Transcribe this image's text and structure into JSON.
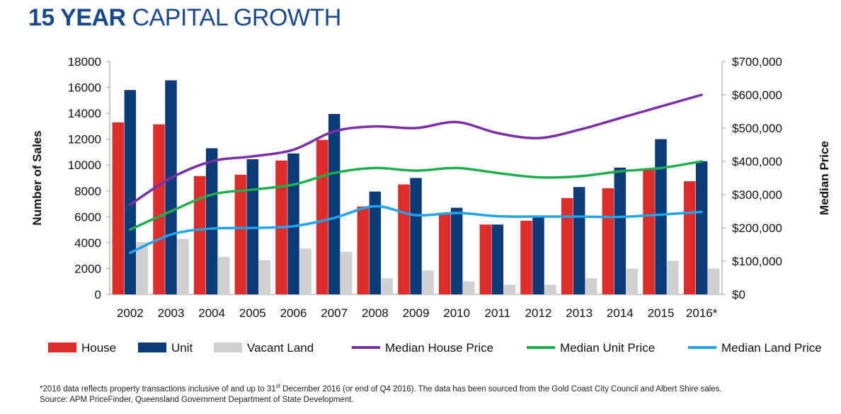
{
  "title": {
    "bold": "15 YEAR",
    "rest": "CAPITAL GROWTH"
  },
  "footnote": {
    "line1_a": "*2016 data reflects property transactions inclusive of and up to 31",
    "line1_sup": "st",
    "line1_b": " December 2016 (or end of Q4 2016). The data has been sourced from the Gold Coast City Council and Albert Shire sales.",
    "line2": "Source: APM PriceFinder, Queensland Government Department of State Development."
  },
  "chart_data": {
    "type": "bar",
    "categories": [
      "2002",
      "2003",
      "2004",
      "2005",
      "2006",
      "2007",
      "2008",
      "2009",
      "2010",
      "2011",
      "2012",
      "2013",
      "2014",
      "2015",
      "2016*"
    ],
    "ylabel": "Number of Sales",
    "y2label": "Median Price",
    "ylim": [
      0,
      18000
    ],
    "y2lim": [
      0,
      700000
    ],
    "yticks": [
      "0",
      "2000",
      "4000",
      "6000",
      "8000",
      "10000",
      "12000",
      "14000",
      "16000",
      "18000"
    ],
    "y2ticks": [
      "$0",
      "$100,000",
      "$200,000",
      "$300,000",
      "$400,000",
      "$500,000",
      "$600,000",
      "$700,000"
    ],
    "grid": false,
    "legend_position": "bottom",
    "bar_series": [
      {
        "name": "House",
        "color": "#e02b2b",
        "values": [
          13300,
          13150,
          9150,
          9250,
          10350,
          11950,
          6800,
          8500,
          6200,
          5400,
          5700,
          7450,
          8200,
          9650,
          8750
        ]
      },
      {
        "name": "Unit",
        "color": "#0d3a78",
        "values": [
          15800,
          16550,
          11300,
          10450,
          10900,
          13950,
          7950,
          9000,
          6700,
          5400,
          6000,
          8300,
          9800,
          12000,
          10300
        ]
      },
      {
        "name": "Vacant Land",
        "color": "#d0d0d0",
        "values": [
          4050,
          4300,
          2900,
          2650,
          3550,
          3300,
          1250,
          1850,
          1000,
          750,
          750,
          1250,
          2000,
          2600,
          2000
        ]
      }
    ],
    "line_series": [
      {
        "name": "Median House Price",
        "color": "#7b2fa8",
        "values": [
          270000,
          350000,
          400000,
          415000,
          435000,
          490000,
          505000,
          500000,
          518000,
          485000,
          470000,
          495000,
          530000,
          565000,
          600000
        ]
      },
      {
        "name": "Median Unit Price",
        "color": "#1fae4e",
        "values": [
          195000,
          250000,
          300000,
          315000,
          330000,
          365000,
          380000,
          372000,
          380000,
          365000,
          352000,
          355000,
          370000,
          380000,
          400000
        ]
      },
      {
        "name": "Median Land Price",
        "color": "#1fa6e8",
        "values": [
          125000,
          180000,
          198000,
          200000,
          205000,
          230000,
          265000,
          238000,
          245000,
          235000,
          234000,
          234000,
          233000,
          240000,
          248000
        ]
      }
    ]
  }
}
